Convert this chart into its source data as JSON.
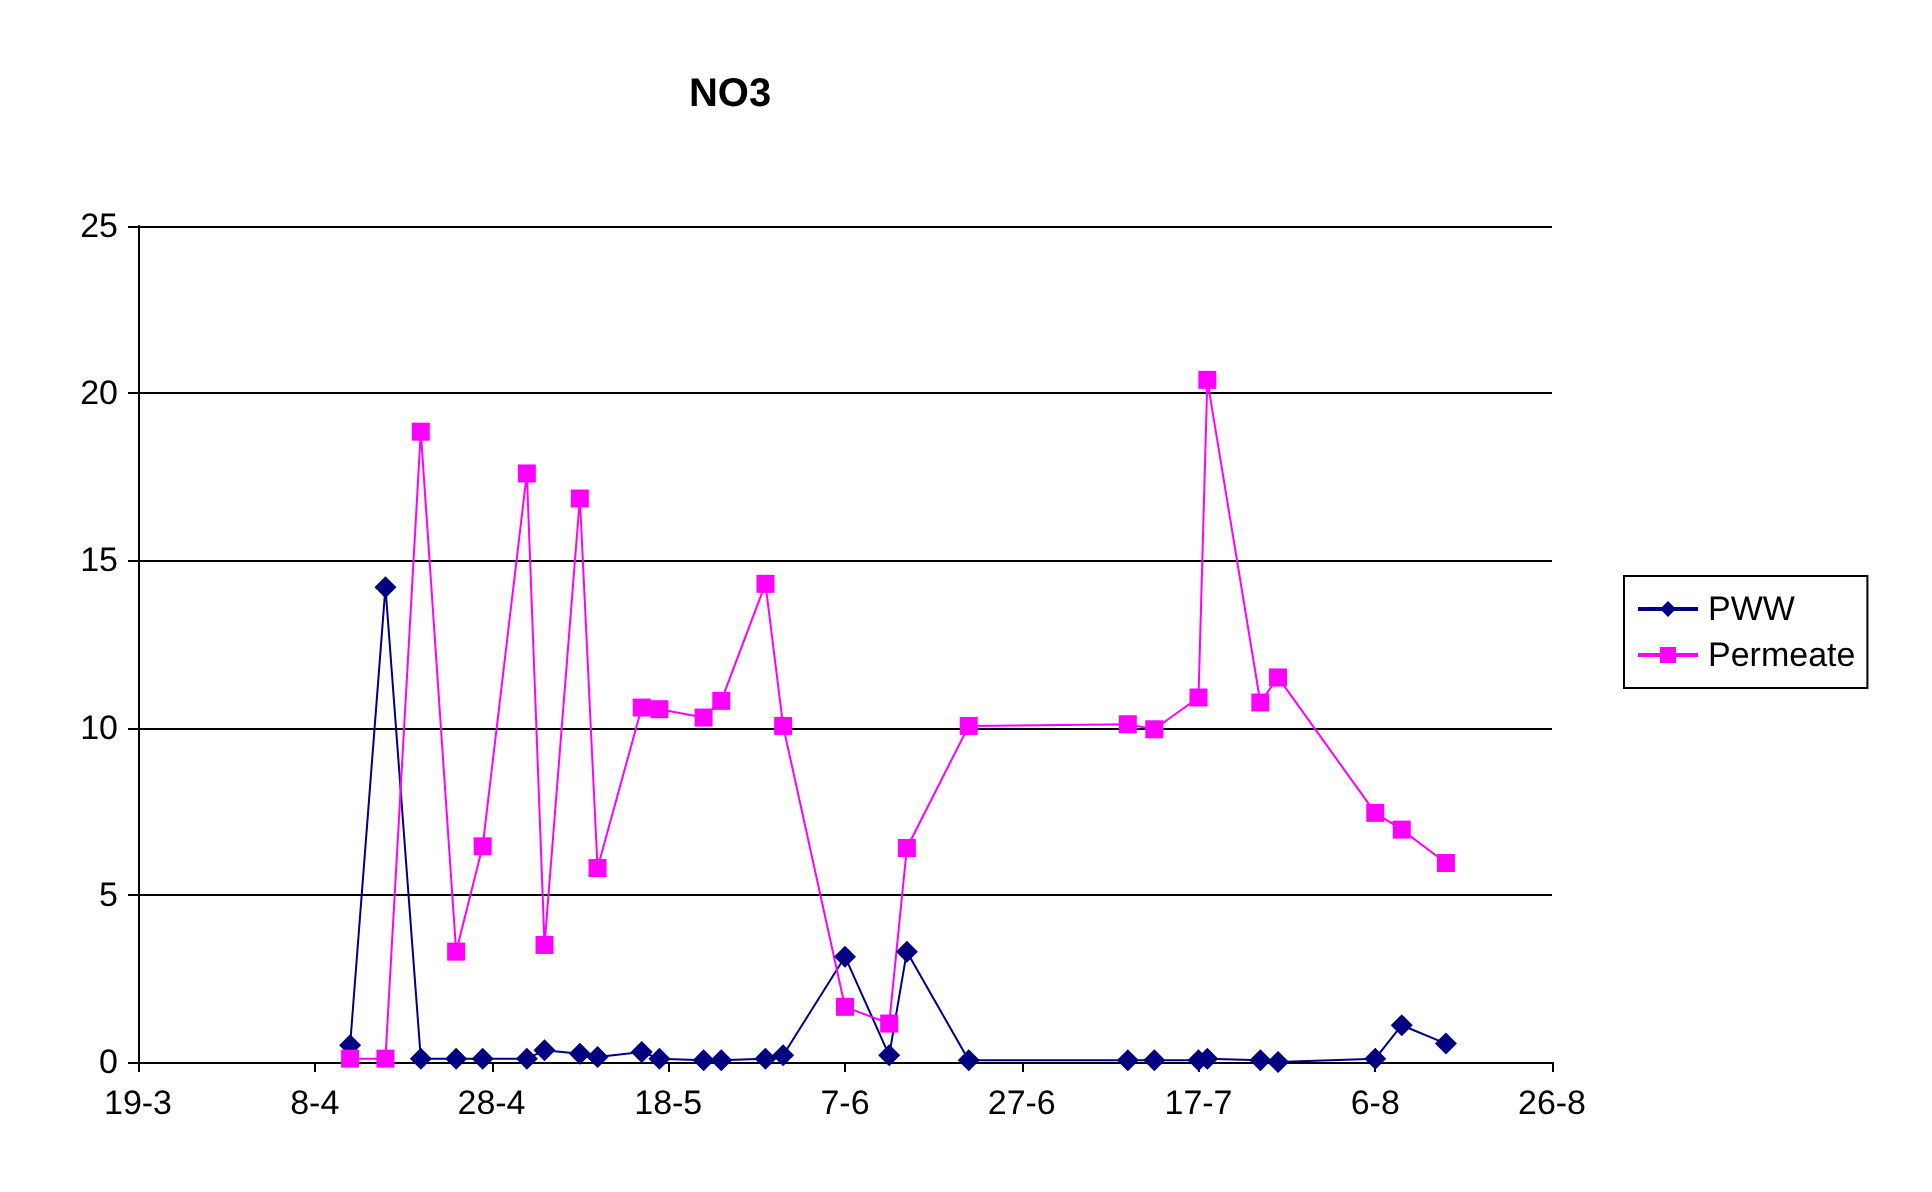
{
  "chart_data": {
    "type": "line",
    "title": "NO3",
    "xlim": [
      "--03-19",
      "--08-26"
    ],
    "xticks": [
      {
        "value": "--03-19",
        "label": "19-3"
      },
      {
        "value": "--04-08",
        "label": "8-4"
      },
      {
        "value": "--04-28",
        "label": "28-4"
      },
      {
        "value": "--05-18",
        "label": "18-5"
      },
      {
        "value": "--06-07",
        "label": "7-6"
      },
      {
        "value": "--06-27",
        "label": "27-6"
      },
      {
        "value": "--07-17",
        "label": "17-7"
      },
      {
        "value": "--08-06",
        "label": "6-8"
      },
      {
        "value": "--08-26",
        "label": "26-8"
      }
    ],
    "ylim": [
      0,
      25
    ],
    "yticks": [
      0,
      5,
      10,
      15,
      20,
      25
    ],
    "grid": "y",
    "legend": "right",
    "x": [
      "--04-12",
      "--04-16",
      "--04-20",
      "--04-24",
      "--04-27",
      "--05-02",
      "--05-04",
      "--05-08",
      "--05-10",
      "--05-15",
      "--05-17",
      "--05-22",
      "--05-24",
      "--05-29",
      "--05-31",
      "--06-07",
      "--06-12",
      "--06-14",
      "--06-21",
      "--07-09",
      "--07-12",
      "--07-17",
      "--07-18",
      "--07-24",
      "--07-26",
      "--08-06",
      "--08-09",
      "--08-14"
    ],
    "series": [
      {
        "name": "PWW",
        "color": "#000080",
        "marker": "diamond",
        "values": [
          0.5,
          14.2,
          0.1,
          0.1,
          0.1,
          0.1,
          0.35,
          0.25,
          0.15,
          0.3,
          0.1,
          0.05,
          0.05,
          0.1,
          0.2,
          3.15,
          0.2,
          3.3,
          0.05,
          0.05,
          0.05,
          0.05,
          0.1,
          0.05,
          0.0,
          0.1,
          1.1,
          0.55
        ]
      },
      {
        "name": "Permeate",
        "color": "#ff00ff",
        "marker": "square",
        "values": [
          0.1,
          0.1,
          18.85,
          3.3,
          6.45,
          17.6,
          3.5,
          16.85,
          5.8,
          10.6,
          10.55,
          10.3,
          10.8,
          14.3,
          10.05,
          1.65,
          1.15,
          6.4,
          10.05,
          10.1,
          9.95,
          10.9,
          20.4,
          10.75,
          11.5,
          7.45,
          6.95,
          5.95
        ]
      }
    ]
  }
}
